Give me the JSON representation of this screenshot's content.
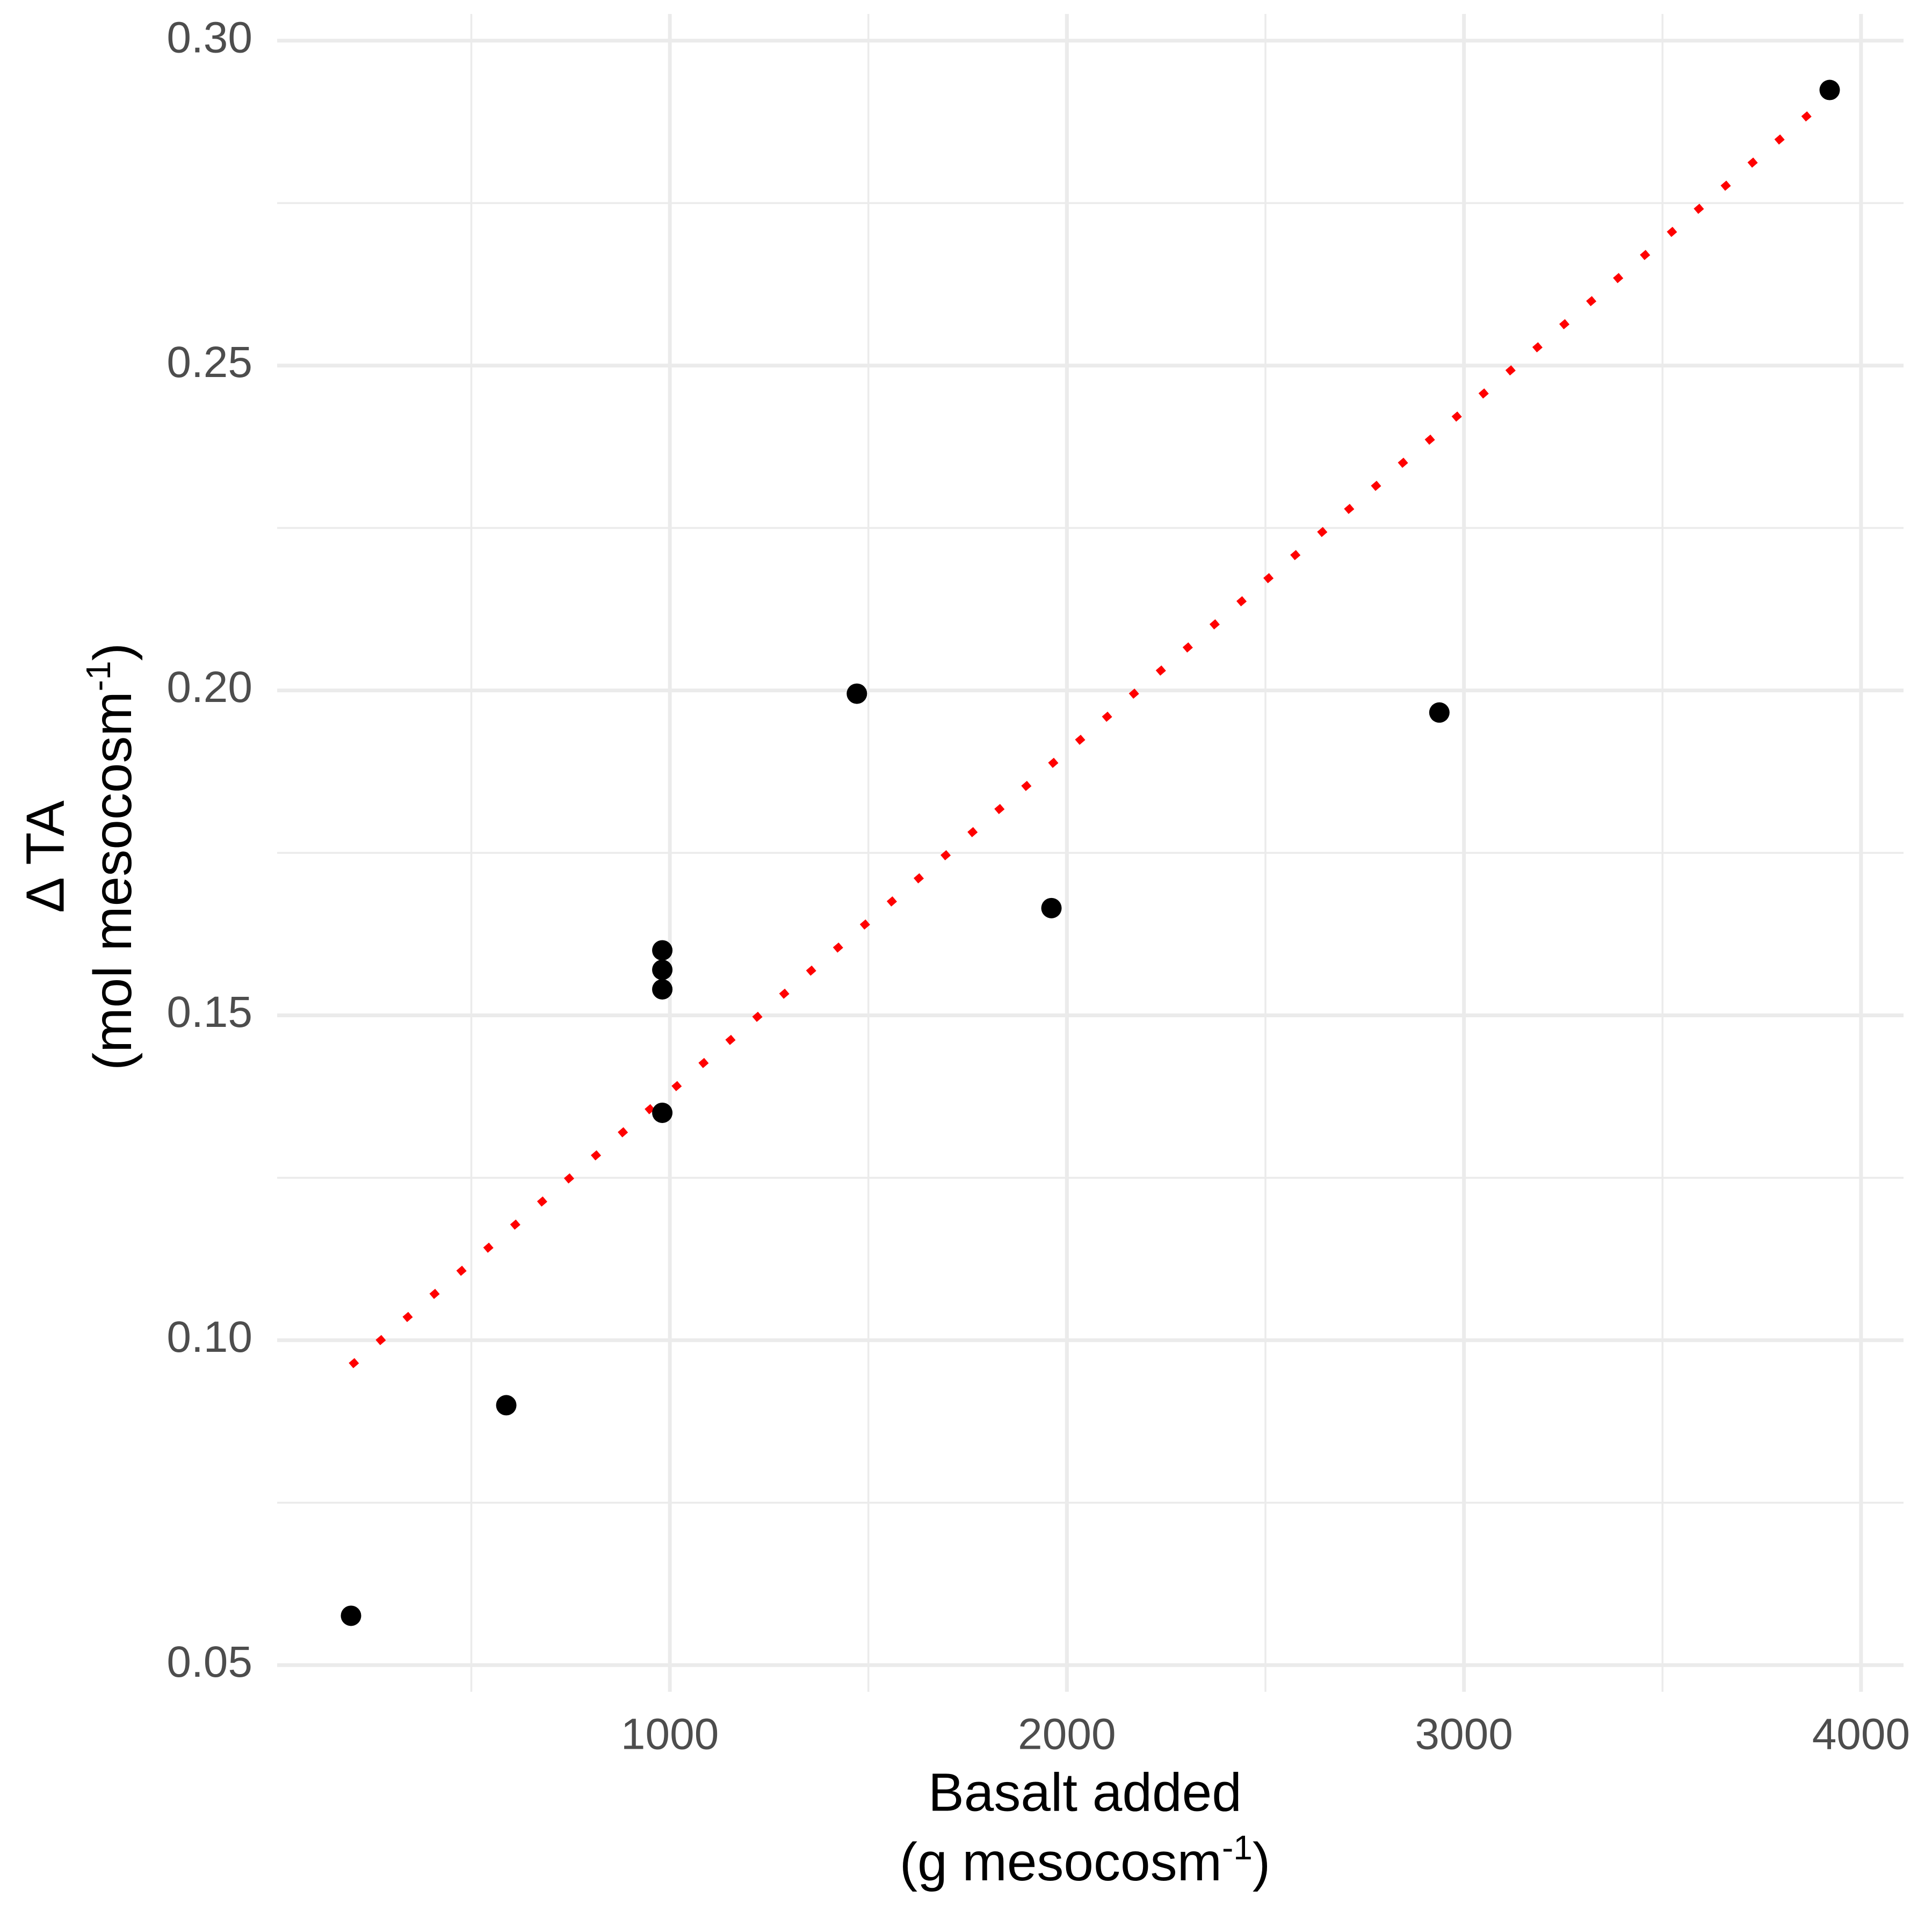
{
  "chart_data": {
    "type": "scatter",
    "x_label": {
      "line1": "Basalt added",
      "line2": [
        "(g mesocosm",
        "-1",
        ")"
      ]
    },
    "y_label": {
      "line1": "Δ TA",
      "line2": [
        "(mol mesocosm",
        "-1",
        ")"
      ]
    },
    "x": [
      197,
      588,
      981,
      981,
      981,
      981,
      1471,
      1961,
      2938,
      3921
    ],
    "series": [
      {
        "color": "#000000",
        "values": [
          0.0576,
          0.09,
          0.16,
          0.157,
          0.154,
          0.135,
          0.1995,
          0.1665,
          0.1966,
          0.2924
        ]
      }
    ],
    "trend_line": {
      "color": "#ff0000",
      "x": [
        197,
        3921
      ],
      "values": [
        0.0961,
        0.2914
      ]
    },
    "xlim": [
      11,
      4107
    ],
    "ylim": [
      0.0459,
      0.3041
    ],
    "xticks": [
      1000,
      2000,
      3000,
      4000
    ],
    "yticks": [
      0.05,
      {
        "value": 0.1,
        "label": "0.10"
      },
      0.15,
      {
        "value": 0.2,
        "label": "0.20"
      },
      0.25,
      {
        "value": 0.3,
        "label": "0.30"
      }
    ],
    "xticks_minor": [
      500,
      1500,
      2500,
      3500
    ],
    "yticks_minor": [
      0.075,
      0.125,
      0.175,
      0.225,
      0.275
    ],
    "grid": true
  }
}
